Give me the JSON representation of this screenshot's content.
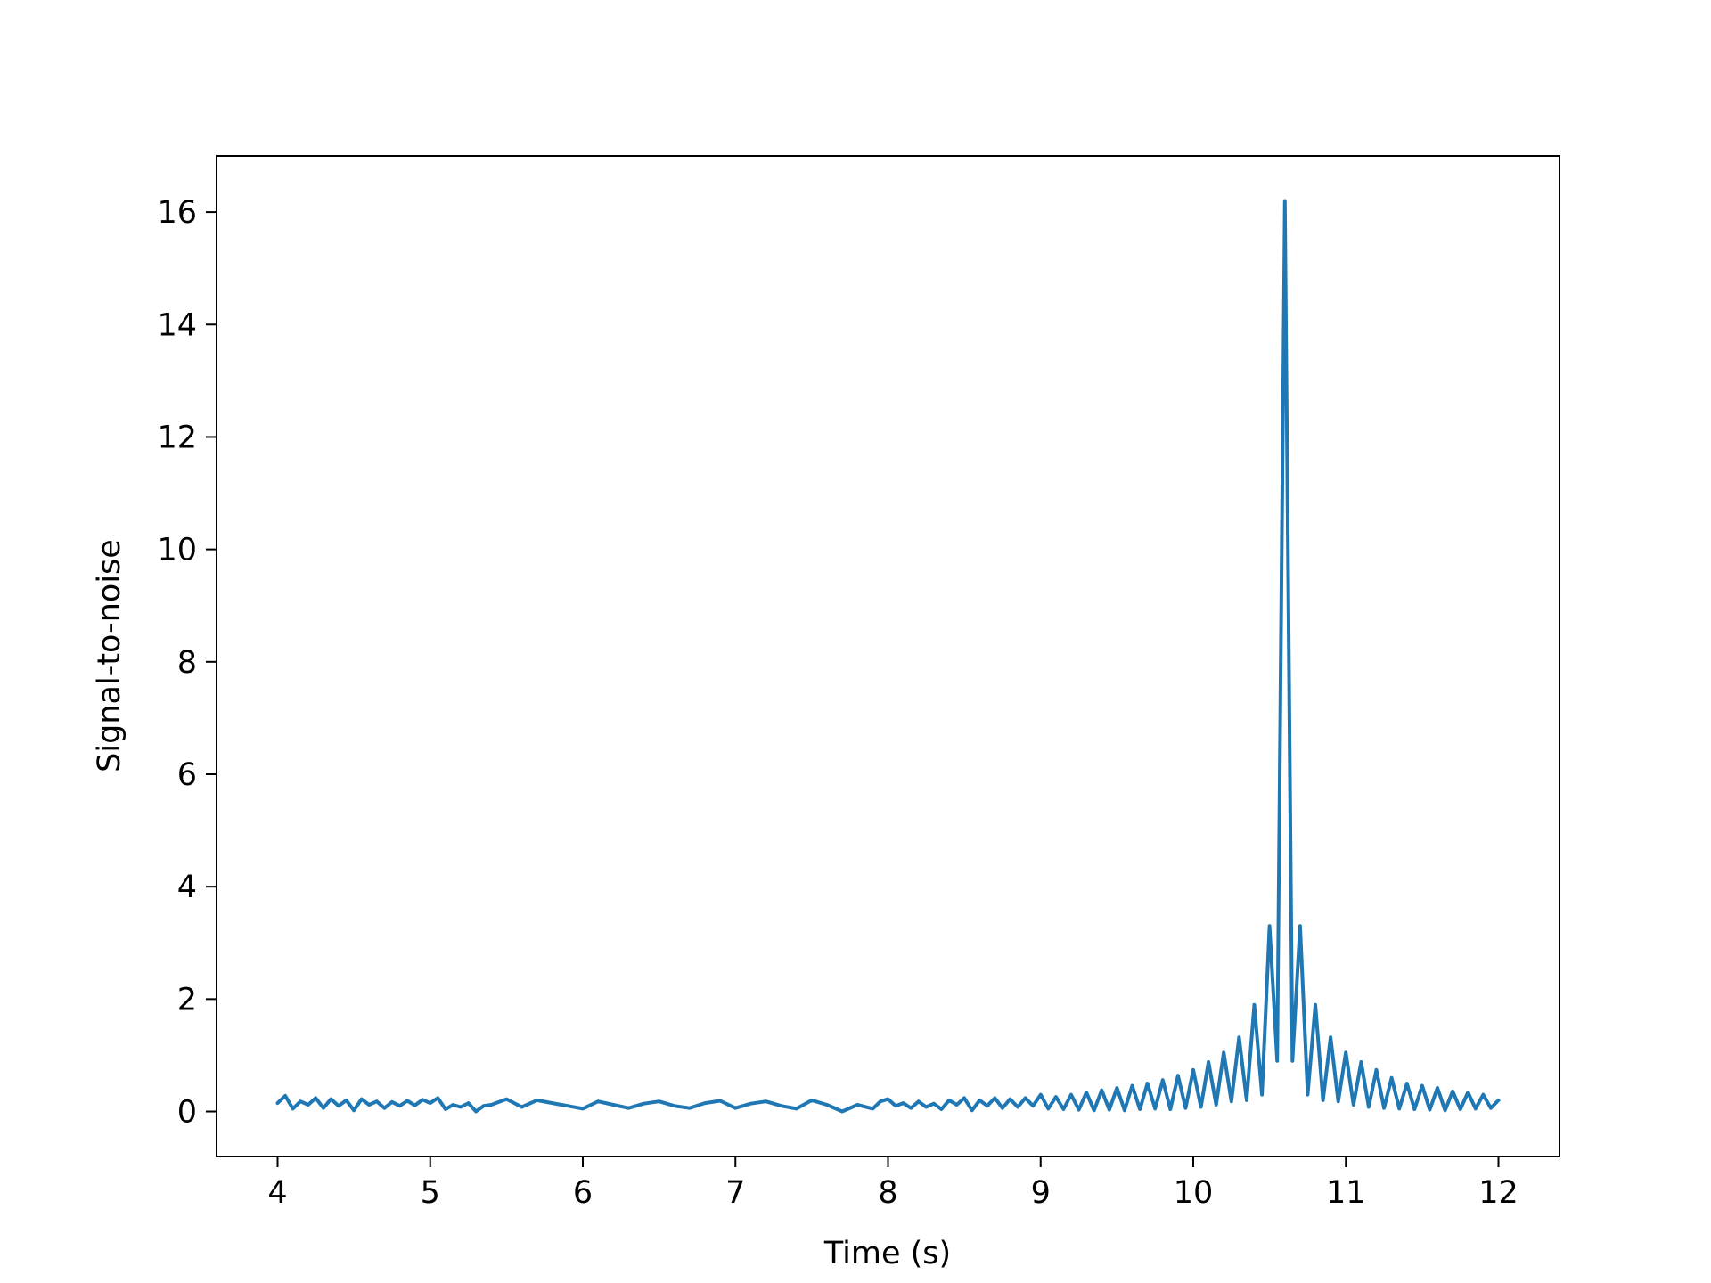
{
  "chart_data": {
    "type": "line",
    "title": "",
    "xlabel": "Time (s)",
    "ylabel": "Signal-to-noise",
    "xlim": [
      3.6,
      12.4
    ],
    "ylim": [
      -0.8,
      17.0
    ],
    "xticks": [
      4,
      5,
      6,
      7,
      8,
      9,
      10,
      11,
      12
    ],
    "xtick_labels": [
      "4",
      "5",
      "6",
      "7",
      "8",
      "9",
      "10",
      "11",
      "12"
    ],
    "yticks": [
      0,
      2,
      4,
      6,
      8,
      10,
      12,
      14,
      16
    ],
    "ytick_labels": [
      "0",
      "2",
      "4",
      "6",
      "8",
      "10",
      "12",
      "14",
      "16"
    ],
    "grid": false,
    "legend": "none",
    "series": [
      {
        "color": "#1f77b4",
        "x": [
          4.0,
          4.05,
          4.1,
          4.15,
          4.2,
          4.25,
          4.3,
          4.35,
          4.4,
          4.45,
          4.5,
          4.55,
          4.6,
          4.65,
          4.7,
          4.75,
          4.8,
          4.85,
          4.9,
          4.95,
          5.0,
          5.05,
          5.1,
          5.15,
          5.2,
          5.25,
          5.3,
          5.35,
          5.4,
          5.5,
          5.6,
          5.7,
          5.8,
          5.9,
          6.0,
          6.1,
          6.2,
          6.3,
          6.4,
          6.5,
          6.6,
          6.7,
          6.8,
          6.9,
          7.0,
          7.1,
          7.2,
          7.3,
          7.4,
          7.5,
          7.6,
          7.7,
          7.8,
          7.9,
          7.95,
          8.0,
          8.05,
          8.1,
          8.15,
          8.2,
          8.25,
          8.3,
          8.35,
          8.4,
          8.45,
          8.5,
          8.55,
          8.6,
          8.65,
          8.7,
          8.75,
          8.8,
          8.85,
          8.9,
          8.95,
          9.0,
          9.05,
          9.1,
          9.15,
          9.2,
          9.25,
          9.3,
          9.35,
          9.4,
          9.45,
          9.5,
          9.55,
          9.6,
          9.65,
          9.7,
          9.75,
          9.8,
          9.85,
          9.9,
          9.95,
          10.0,
          10.05,
          10.1,
          10.15,
          10.2,
          10.25,
          10.3,
          10.35,
          10.4,
          10.45,
          10.5,
          10.55,
          10.6,
          10.65,
          10.7,
          10.75,
          10.8,
          10.85,
          10.9,
          10.95,
          11.0,
          11.05,
          11.1,
          11.15,
          11.2,
          11.25,
          11.3,
          11.35,
          11.4,
          11.45,
          11.5,
          11.55,
          11.6,
          11.65,
          11.7,
          11.75,
          11.8,
          11.85,
          11.9,
          11.95,
          12.0
        ],
        "y": [
          0.15,
          0.28,
          0.05,
          0.18,
          0.12,
          0.24,
          0.06,
          0.22,
          0.1,
          0.2,
          0.02,
          0.22,
          0.12,
          0.18,
          0.06,
          0.17,
          0.1,
          0.19,
          0.11,
          0.21,
          0.15,
          0.24,
          0.04,
          0.12,
          0.08,
          0.15,
          0.0,
          0.1,
          0.12,
          0.22,
          0.08,
          0.2,
          0.15,
          0.1,
          0.05,
          0.18,
          0.12,
          0.06,
          0.14,
          0.18,
          0.1,
          0.06,
          0.15,
          0.19,
          0.06,
          0.14,
          0.18,
          0.1,
          0.05,
          0.2,
          0.12,
          0.0,
          0.12,
          0.05,
          0.18,
          0.22,
          0.1,
          0.15,
          0.06,
          0.18,
          0.08,
          0.14,
          0.04,
          0.2,
          0.12,
          0.24,
          0.02,
          0.2,
          0.1,
          0.24,
          0.06,
          0.22,
          0.08,
          0.24,
          0.1,
          0.3,
          0.05,
          0.26,
          0.04,
          0.3,
          0.03,
          0.34,
          0.02,
          0.38,
          0.03,
          0.42,
          0.02,
          0.46,
          0.04,
          0.5,
          0.05,
          0.56,
          0.04,
          0.64,
          0.06,
          0.74,
          0.08,
          0.88,
          0.12,
          1.05,
          0.18,
          1.32,
          0.2,
          1.9,
          0.3,
          3.3,
          0.9,
          16.2,
          0.9,
          3.3,
          0.3,
          1.9,
          0.2,
          1.32,
          0.18,
          1.05,
          0.12,
          0.88,
          0.08,
          0.74,
          0.06,
          0.6,
          0.05,
          0.5,
          0.04,
          0.46,
          0.03,
          0.42,
          0.02,
          0.36,
          0.04,
          0.34,
          0.05,
          0.3,
          0.06,
          0.2
        ]
      }
    ]
  }
}
